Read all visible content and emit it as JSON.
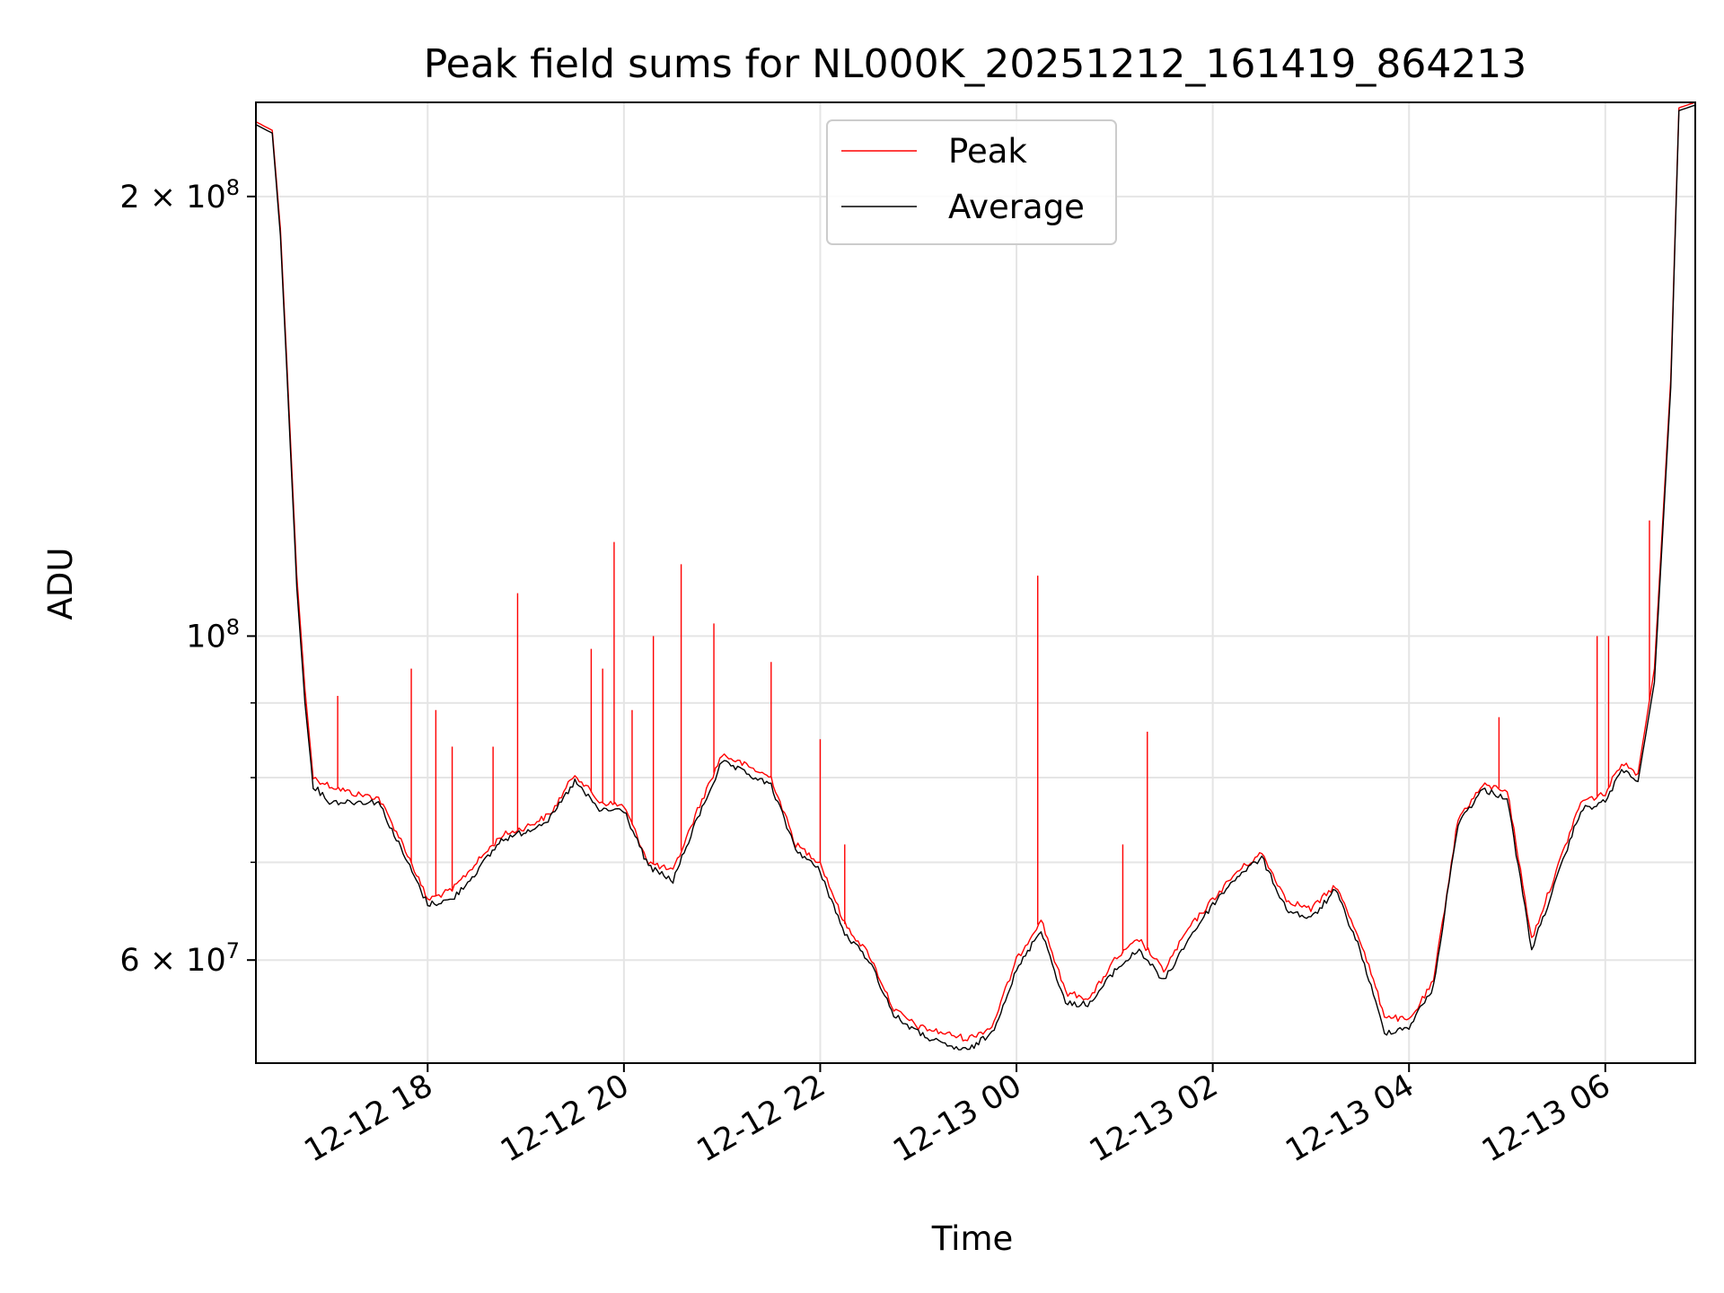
{
  "chart_data": {
    "type": "line",
    "title": "Peak field sums for NL000K_20251212_161419_864213",
    "xlabel": "Time",
    "ylabel": "ADU",
    "yscale": "log",
    "xlim": [
      "2025-12-12 16:15",
      "2025-12-13 06:55"
    ],
    "ylim": [
      51000000,
      232000000
    ],
    "grid": true,
    "legend": {
      "placement": "top-center"
    },
    "x_ticks": [
      "12-12 18",
      "12-12 20",
      "12-12 22",
      "12-13 00",
      "12-13 02",
      "12-13 04",
      "12-13 06"
    ],
    "x_tick_values": [
      "2025-12-12 18:00",
      "2025-12-12 20:00",
      "2025-12-12 22:00",
      "2025-12-13 00:00",
      "2025-12-13 02:00",
      "2025-12-13 04:00",
      "2025-12-13 06:00"
    ],
    "y_ticks": [
      {
        "value": 200000000,
        "mantissa": "2",
        "base": "10",
        "exp": "8"
      },
      {
        "value": 100000000,
        "mantissa": "",
        "base": "10",
        "exp": "8"
      },
      {
        "value": 60000000,
        "mantissa": "6",
        "base": "10",
        "exp": "7"
      }
    ],
    "y_minor_ticks": [
      70000000,
      80000000,
      90000000
    ],
    "x": [
      "2025-12-12 16:15",
      "2025-12-12 16:25",
      "2025-12-12 16:30",
      "2025-12-12 16:35",
      "2025-12-12 16:40",
      "2025-12-12 16:45",
      "2025-12-12 16:50",
      "2025-12-12 17:00",
      "2025-12-12 17:15",
      "2025-12-12 17:30",
      "2025-12-12 17:45",
      "2025-12-12 18:00",
      "2025-12-12 18:15",
      "2025-12-12 18:30",
      "2025-12-12 18:45",
      "2025-12-12 19:00",
      "2025-12-12 19:15",
      "2025-12-12 19:30",
      "2025-12-12 19:45",
      "2025-12-12 20:00",
      "2025-12-12 20:15",
      "2025-12-12 20:30",
      "2025-12-12 20:45",
      "2025-12-12 21:00",
      "2025-12-12 21:15",
      "2025-12-12 21:30",
      "2025-12-12 21:45",
      "2025-12-12 22:00",
      "2025-12-12 22:15",
      "2025-12-12 22:30",
      "2025-12-12 22:45",
      "2025-12-12 23:00",
      "2025-12-12 23:15",
      "2025-12-12 23:30",
      "2025-12-12 23:45",
      "2025-12-13 00:00",
      "2025-12-13 00:15",
      "2025-12-13 00:30",
      "2025-12-13 00:45",
      "2025-12-13 01:00",
      "2025-12-13 01:15",
      "2025-12-13 01:30",
      "2025-12-13 01:45",
      "2025-12-13 02:00",
      "2025-12-13 02:15",
      "2025-12-13 02:30",
      "2025-12-13 02:45",
      "2025-12-13 03:00",
      "2025-12-13 03:15",
      "2025-12-13 03:30",
      "2025-12-13 03:45",
      "2025-12-13 04:00",
      "2025-12-13 04:15",
      "2025-12-13 04:30",
      "2025-12-13 04:45",
      "2025-12-13 05:00",
      "2025-12-13 05:15",
      "2025-12-13 05:30",
      "2025-12-13 05:45",
      "2025-12-13 06:00",
      "2025-12-13 06:10",
      "2025-12-13 06:20",
      "2025-12-13 06:30",
      "2025-12-13 06:40",
      "2025-12-13 06:45",
      "2025-12-13 06:55"
    ],
    "series": [
      {
        "name": "Peak",
        "color": "#ff0000",
        "values": [
          225000000,
          222000000,
          190000000,
          145000000,
          110000000,
          92000000,
          80000000,
          79000000,
          78000000,
          77500000,
          72000000,
          66000000,
          67000000,
          70000000,
          73000000,
          74000000,
          75500000,
          80500000,
          77000000,
          76500000,
          70000000,
          69000000,
          76000000,
          83000000,
          81500000,
          80000000,
          72000000,
          70000000,
          63500000,
          60500000,
          55500000,
          54000000,
          53500000,
          53000000,
          54000000,
          60000000,
          64000000,
          57000000,
          56500000,
          60000000,
          62000000,
          59000000,
          63000000,
          66000000,
          69000000,
          71000000,
          66000000,
          65000000,
          67500000,
          62000000,
          55000000,
          54500000,
          58000000,
          75000000,
          79000000,
          78500000,
          62000000,
          69000000,
          77000000,
          78000000,
          82000000,
          80500000,
          95000000,
          150000000,
          230000000,
          232000000
        ]
      },
      {
        "name": "Average",
        "color": "#000000",
        "values": [
          224000000,
          221000000,
          188000000,
          143000000,
          108000000,
          90000000,
          79000000,
          77000000,
          77000000,
          77000000,
          71000000,
          65500000,
          66000000,
          69000000,
          72500000,
          73500000,
          75000000,
          79500000,
          76000000,
          76000000,
          69500000,
          68000000,
          75000000,
          82000000,
          80500000,
          79000000,
          71500000,
          69000000,
          62500000,
          60000000,
          55000000,
          53500000,
          52500000,
          52000000,
          53500000,
          59000000,
          63000000,
          56000000,
          56000000,
          59000000,
          61000000,
          58000000,
          62000000,
          65500000,
          68500000,
          70500000,
          65000000,
          64000000,
          67000000,
          61000000,
          53500000,
          54000000,
          57500000,
          74500000,
          78500000,
          77500000,
          61000000,
          68000000,
          76000000,
          77000000,
          81000000,
          79500000,
          93000000,
          148000000,
          229000000,
          231000000
        ]
      }
    ],
    "spikes": {
      "series": "Peak",
      "points": [
        {
          "x": "2025-12-12 17:05",
          "y": 91000000
        },
        {
          "x": "2025-12-12 17:50",
          "y": 95000000
        },
        {
          "x": "2025-12-12 18:05",
          "y": 89000000
        },
        {
          "x": "2025-12-12 18:15",
          "y": 84000000
        },
        {
          "x": "2025-12-12 18:40",
          "y": 84000000
        },
        {
          "x": "2025-12-12 18:55",
          "y": 107000000
        },
        {
          "x": "2025-12-12 19:40",
          "y": 98000000
        },
        {
          "x": "2025-12-12 19:47",
          "y": 95000000
        },
        {
          "x": "2025-12-12 19:54",
          "y": 116000000
        },
        {
          "x": "2025-12-12 20:05",
          "y": 89000000
        },
        {
          "x": "2025-12-12 20:18",
          "y": 100000000
        },
        {
          "x": "2025-12-12 20:35",
          "y": 112000000
        },
        {
          "x": "2025-12-12 20:55",
          "y": 102000000
        },
        {
          "x": "2025-12-12 21:30",
          "y": 96000000
        },
        {
          "x": "2025-12-12 22:00",
          "y": 85000000
        },
        {
          "x": "2025-12-12 22:15",
          "y": 72000000
        },
        {
          "x": "2025-12-13 00:13",
          "y": 110000000
        },
        {
          "x": "2025-12-13 01:05",
          "y": 72000000
        },
        {
          "x": "2025-12-13 01:20",
          "y": 86000000
        },
        {
          "x": "2025-12-13 04:55",
          "y": 88000000
        },
        {
          "x": "2025-12-13 05:55",
          "y": 100000000
        },
        {
          "x": "2025-12-13 06:02",
          "y": 100000000
        },
        {
          "x": "2025-12-13 06:27",
          "y": 120000000
        }
      ]
    }
  }
}
